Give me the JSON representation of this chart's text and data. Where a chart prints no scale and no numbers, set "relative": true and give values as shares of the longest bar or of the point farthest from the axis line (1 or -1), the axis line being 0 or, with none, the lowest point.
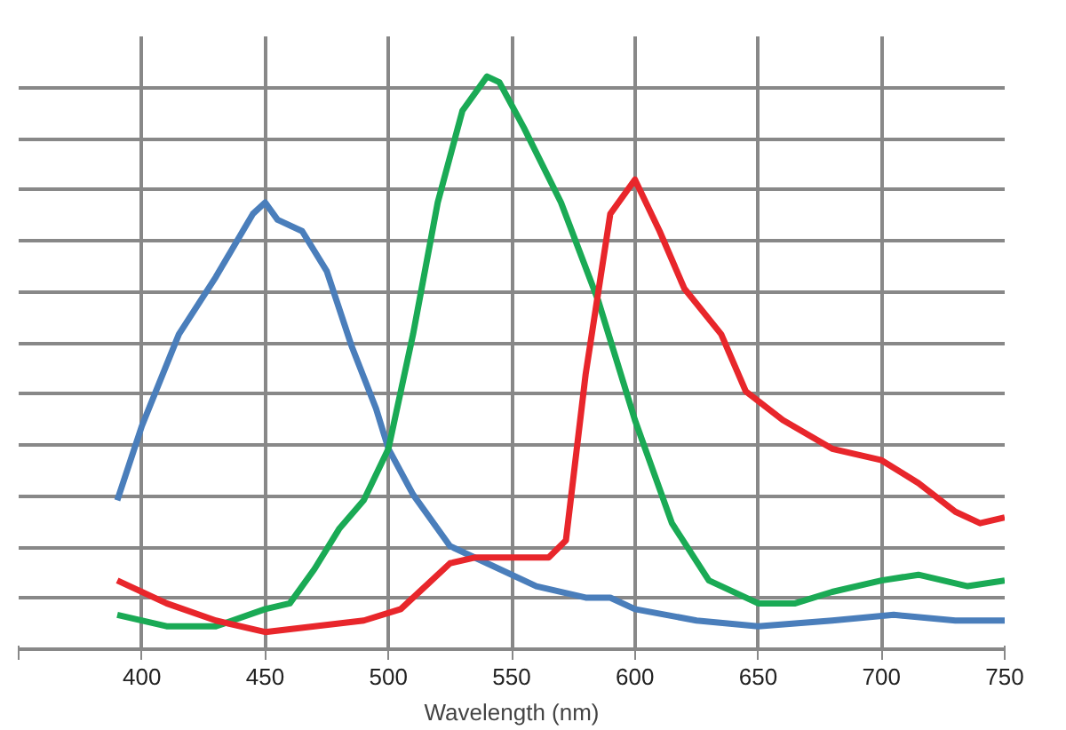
{
  "chart_data": {
    "type": "line",
    "relative": true,
    "xlabel": "Wavelength (nm)",
    "xlim": [
      350,
      750
    ],
    "xticks": [
      {
        "value": 350,
        "label": null
      },
      400,
      450,
      500,
      550,
      600,
      650,
      700,
      750
    ],
    "grid": true,
    "line_style": "solid",
    "series": [
      {
        "color": "#4a7ebb",
        "x": [
          390,
          400,
          415,
          430,
          445,
          450,
          455,
          465,
          475,
          485,
          495,
          500,
          510,
          525,
          540,
          560,
          580,
          590,
          600,
          625,
          650,
          680,
          705,
          730,
          750
        ],
        "values": [
          0.26,
          0.39,
          0.55,
          0.65,
          0.76,
          0.78,
          0.75,
          0.73,
          0.66,
          0.53,
          0.42,
          0.35,
          0.27,
          0.18,
          0.15,
          0.11,
          0.09,
          0.09,
          0.07,
          0.05,
          0.04,
          0.05,
          0.06,
          0.05,
          0.05
        ]
      },
      {
        "color": "#1aaa55",
        "x": [
          390,
          410,
          430,
          450,
          460,
          470,
          480,
          490,
          500,
          510,
          520,
          530,
          540,
          545,
          555,
          570,
          585,
          600,
          615,
          630,
          650,
          665,
          680,
          700,
          715,
          735,
          750
        ],
        "values": [
          0.06,
          0.04,
          0.04,
          0.07,
          0.08,
          0.14,
          0.21,
          0.26,
          0.35,
          0.55,
          0.78,
          0.94,
          1,
          0.99,
          0.91,
          0.78,
          0.61,
          0.4,
          0.22,
          0.12,
          0.08,
          0.08,
          0.1,
          0.12,
          0.13,
          0.11,
          0.12
        ]
      },
      {
        "color": "#e8262b",
        "x": [
          390,
          410,
          430,
          450,
          470,
          490,
          505,
          515,
          525,
          535,
          550,
          565,
          572,
          580,
          590,
          600,
          610,
          620,
          635,
          645,
          660,
          680,
          700,
          715,
          730,
          740,
          750
        ],
        "values": [
          0.12,
          0.08,
          0.05,
          0.03,
          0.04,
          0.05,
          0.07,
          0.11,
          0.15,
          0.16,
          0.16,
          0.16,
          0.19,
          0.48,
          0.76,
          0.82,
          0.73,
          0.63,
          0.55,
          0.45,
          0.4,
          0.35,
          0.33,
          0.29,
          0.24,
          0.22,
          0.23
        ]
      }
    ]
  }
}
